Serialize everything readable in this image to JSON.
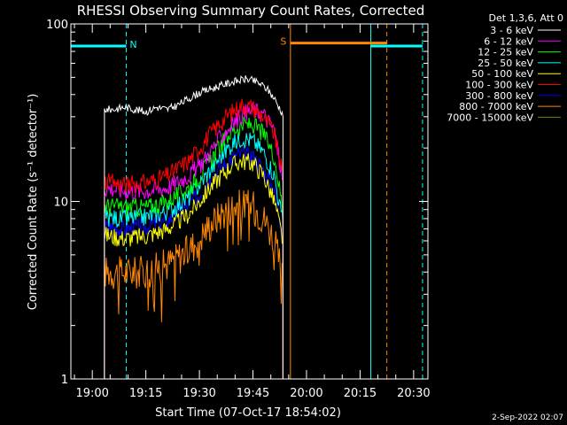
{
  "chart_data": {
    "type": "line",
    "title": "RHESSI Observing Summary Count Rates, Corrected",
    "xlabel": "Start Time (07-Oct-17 18:54:02)",
    "ylabel": "Corrected Count Rate (s⁻¹ detector⁻¹)",
    "ylog": true,
    "ylim": [
      1,
      100
    ],
    "xlim_minutes_from_1854": [
      0,
      100
    ],
    "x_ticks": [
      {
        "label": "19:00",
        "min": 6
      },
      {
        "label": "19:15",
        "min": 21
      },
      {
        "label": "19:30",
        "min": 36
      },
      {
        "label": "19:45",
        "min": 51
      },
      {
        "label": "20:00",
        "min": 66
      },
      {
        "label": "20:15",
        "min": 81
      },
      {
        "label": "20:30",
        "min": 96
      }
    ],
    "y_ticks": [
      {
        "label": "1",
        "value": 1
      },
      {
        "label": "10",
        "value": 10
      },
      {
        "label": "100",
        "value": 100
      }
    ],
    "legend_header": "Det 1,3,6, Att 0",
    "series": [
      {
        "name": "3 - 6 keV",
        "color": "#ffffff",
        "x": [
          9.4,
          12,
          15,
          18,
          21,
          24,
          27,
          30,
          33,
          36,
          39,
          42,
          45,
          47,
          49,
          51,
          53,
          55,
          57,
          59.4
        ],
        "y": [
          33,
          33,
          34,
          33,
          32,
          34,
          33,
          35,
          38,
          41,
          43,
          45,
          47,
          48,
          49,
          48,
          46,
          43,
          38,
          31
        ]
      },
      {
        "name": "6 - 12 keV",
        "color": "#ff00ff",
        "x": [
          9.4,
          15,
          21,
          27,
          33,
          36,
          39,
          42,
          45,
          48,
          51,
          54,
          57,
          59.4
        ],
        "y": [
          12,
          11.5,
          11.5,
          12,
          14,
          16,
          19,
          23,
          27,
          31,
          33,
          31,
          25,
          13
        ]
      },
      {
        "name": "12 - 25 keV",
        "color": "#00ff00",
        "x": [
          9.4,
          15,
          21,
          27,
          33,
          36,
          39,
          42,
          45,
          48,
          51,
          54,
          57,
          59.4
        ],
        "y": [
          9.5,
          9.3,
          9.3,
          10,
          12,
          14,
          17,
          21,
          25,
          27,
          27,
          24,
          18,
          9
        ]
      },
      {
        "name": "25 - 50 keV",
        "color": "#00ffff",
        "x": [
          9.4,
          15,
          21,
          27,
          33,
          36,
          39,
          42,
          45,
          48,
          51,
          54,
          57,
          59.4
        ],
        "y": [
          8.2,
          8,
          8.2,
          8.8,
          10.5,
          12.5,
          15,
          18,
          21,
          23,
          22,
          19,
          14,
          7.5
        ]
      },
      {
        "name": "50 - 100 keV",
        "color": "#ffff00",
        "x": [
          9.4,
          15,
          21,
          27,
          33,
          36,
          39,
          42,
          45,
          48,
          51,
          54,
          57,
          59.4
        ],
        "y": [
          6.5,
          6.2,
          6.4,
          7,
          8.5,
          10,
          12,
          14,
          16,
          17,
          16.5,
          14,
          10,
          6
        ]
      },
      {
        "name": "100 - 300 keV",
        "color": "#ff0000",
        "x": [
          9.4,
          15,
          21,
          27,
          33,
          36,
          39,
          42,
          45,
          48,
          51,
          54,
          57,
          59.4
        ],
        "y": [
          13,
          12.5,
          12.8,
          14,
          17,
          20,
          24,
          28,
          32,
          35,
          34,
          30,
          24,
          14
        ]
      },
      {
        "name": "300 - 800 keV",
        "color": "#0000ff",
        "x": [
          9.4,
          15,
          21,
          27,
          33,
          36,
          39,
          42,
          45,
          48,
          51,
          54,
          57,
          59.4
        ],
        "y": [
          7.2,
          7,
          7.2,
          7.8,
          9.5,
          11,
          13.5,
          15.5,
          17.5,
          18.5,
          18,
          15,
          11.5,
          6.5
        ]
      },
      {
        "name": "800 - 7000 keV",
        "color": "#ff8800",
        "x": [
          9.4,
          15,
          21,
          27,
          33,
          36,
          39,
          42,
          45,
          48,
          51,
          54,
          57,
          59.4
        ],
        "y": [
          4.1,
          4,
          4.1,
          4.5,
          5.4,
          6.3,
          7.5,
          8.6,
          9.5,
          9.8,
          9.5,
          8.2,
          6.2,
          3.6
        ]
      },
      {
        "name": "7000 - 15000 keV",
        "color": "#808000",
        "x": [],
        "y": []
      }
    ],
    "markers": [
      {
        "kind": "flag",
        "label": "N",
        "color": "#00ffff",
        "segments": [
          [
            0,
            15.5
          ],
          [
            84,
            98.5
          ]
        ]
      },
      {
        "kind": "flag",
        "label": "S",
        "color": "#ff8800",
        "segments": [
          [
            61.5,
            88.5
          ]
        ]
      }
    ],
    "timestamp": "2-Sep-2022 02:07"
  }
}
